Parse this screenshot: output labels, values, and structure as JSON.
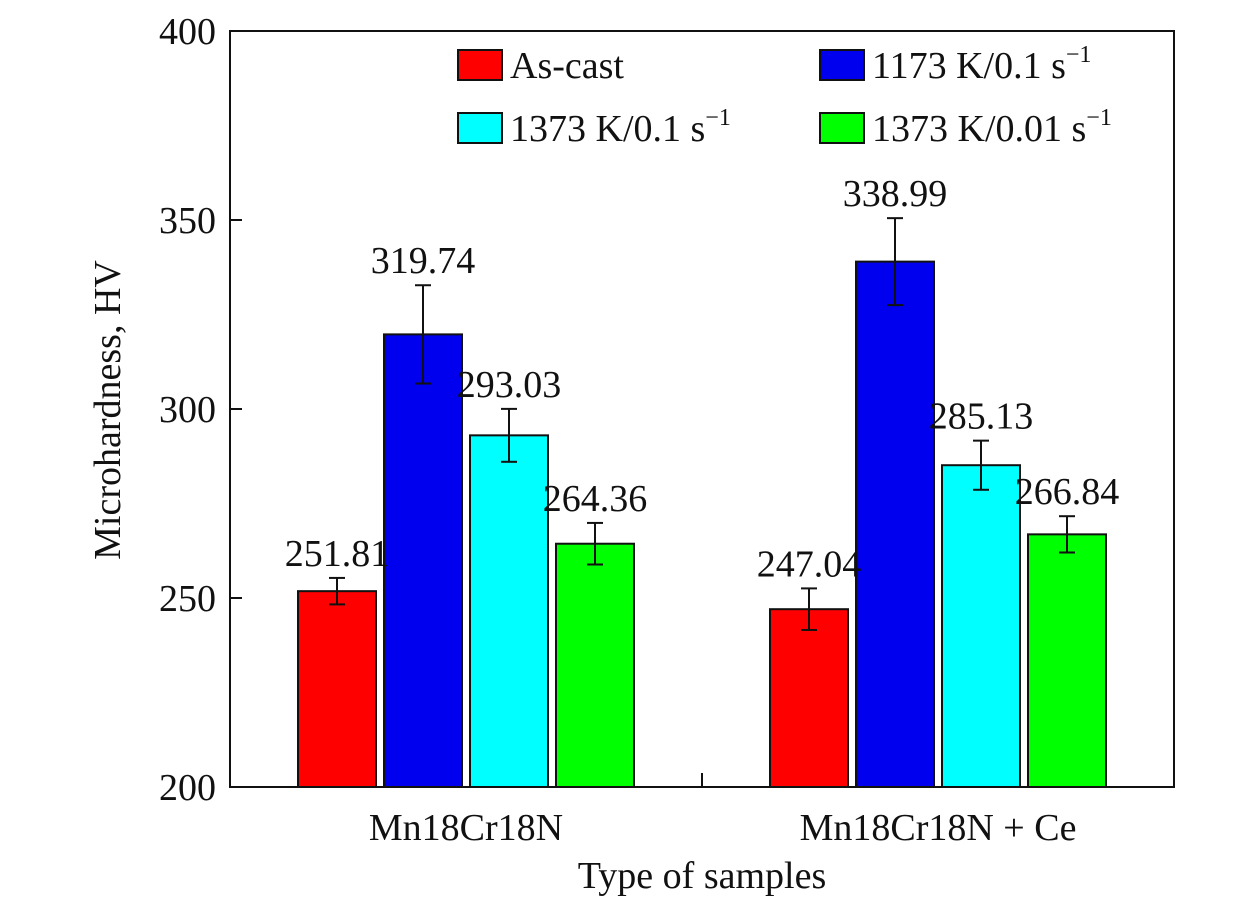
{
  "chart_data": {
    "type": "bar",
    "title": "",
    "xlabel": "Type of samples",
    "ylabel": "Microhardness, HV",
    "ylim": [
      200,
      400
    ],
    "yticks": [
      200,
      250,
      300,
      350,
      400
    ],
    "categories": [
      "Mn18Cr18N",
      "Mn18Cr18N + Ce"
    ],
    "series": [
      {
        "name": "As-cast",
        "name_main": "As-cast",
        "name_sup": "",
        "color": "#ff0000",
        "values": [
          251.81,
          247.04
        ],
        "errors": [
          3.5,
          5.5
        ],
        "labels": [
          "251.81",
          "247.04"
        ]
      },
      {
        "name": "1173 K/0.1 s⁻¹",
        "name_main": "1173 K/0.1 s",
        "name_sup": "−1",
        "color": "#0000ee",
        "values": [
          319.74,
          338.99
        ],
        "errors": [
          13.0,
          11.5
        ],
        "labels": [
          "319.74",
          "338.99"
        ]
      },
      {
        "name": "1373 K/0.1 s⁻¹",
        "name_main": "1373 K/0.1 s",
        "name_sup": "−1",
        "color": "#00ffff",
        "values": [
          293.03,
          285.13
        ],
        "errors": [
          7.0,
          6.5
        ],
        "labels": [
          "293.03",
          "285.13"
        ]
      },
      {
        "name": "1373 K/0.01 s⁻¹",
        "name_main": "1373 K/0.01 s",
        "name_sup": "−1",
        "color": "#00ff00",
        "values": [
          264.36,
          266.84
        ],
        "errors": [
          5.5,
          4.8
        ],
        "labels": [
          "264.36",
          "266.84"
        ]
      }
    ],
    "legend": {
      "position": "top",
      "columns": 2
    },
    "grid": false
  }
}
